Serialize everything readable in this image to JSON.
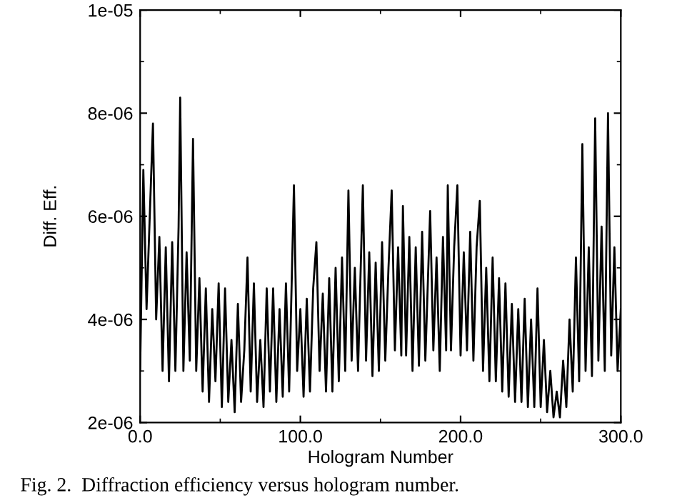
{
  "chart_data": {
    "type": "line",
    "xlabel": "Hologram Number",
    "ylabel": "Diff. Eff.",
    "annotations": [
      "Fig. 2.  Diffraction efficiency versus hologram number."
    ],
    "xlim": [
      0,
      300
    ],
    "ylim": [
      2e-06,
      1e-05
    ],
    "xticks": [
      {
        "value": 0,
        "label": "0.0"
      },
      {
        "value": 100,
        "label": "100.0"
      },
      {
        "value": 200,
        "label": "200.0"
      },
      {
        "value": 300,
        "label": "300.0"
      }
    ],
    "yticks": [
      {
        "value": 2e-06,
        "label": "2e-06"
      },
      {
        "value": 4e-06,
        "label": "4e-06"
      },
      {
        "value": 6e-06,
        "label": "6e-06"
      },
      {
        "value": 8e-06,
        "label": "8e-06"
      },
      {
        "value": 1e-05,
        "label": "1e-05"
      }
    ],
    "grid": false,
    "marker": "none",
    "line_style": "solid",
    "series": [
      {
        "color": "#000000",
        "x": [
          0,
          2,
          4,
          6,
          8,
          10,
          12,
          14,
          16,
          18,
          20,
          22,
          24,
          25,
          27,
          29,
          31,
          33,
          35,
          37,
          39,
          41,
          43,
          45,
          47,
          49,
          51,
          53,
          55,
          57,
          59,
          61,
          63,
          65,
          67,
          69,
          71,
          73,
          75,
          77,
          79,
          81,
          83,
          85,
          87,
          89,
          91,
          93,
          96,
          98,
          100,
          102,
          104,
          106,
          108,
          110,
          112,
          114,
          116,
          118,
          120,
          122,
          124,
          126,
          128,
          130,
          132,
          134,
          136,
          139,
          141,
          143,
          145,
          147,
          149,
          151,
          153,
          155,
          157,
          159,
          161,
          163,
          164,
          166,
          168,
          170,
          172,
          174,
          176,
          178,
          181,
          183,
          185,
          187,
          189,
          191,
          192,
          194,
          196,
          198,
          200,
          202,
          204,
          206,
          208,
          210,
          212,
          214,
          216,
          218,
          220,
          222,
          224,
          226,
          228,
          230,
          232,
          234,
          236,
          238,
          240,
          242,
          244,
          246,
          248,
          250,
          252,
          254,
          256,
          258,
          260,
          262,
          264,
          266,
          268,
          270,
          272,
          274,
          276,
          278,
          280,
          282,
          284,
          286,
          288,
          290,
          292,
          294,
          296,
          298,
          300
        ],
        "values": [
          3e-06,
          6.9e-06,
          4.2e-06,
          6e-06,
          7.8e-06,
          4e-06,
          5.6e-06,
          3e-06,
          5.4e-06,
          2.8e-06,
          5.5e-06,
          3e-06,
          5.8e-06,
          8.3e-06,
          3e-06,
          5.3e-06,
          3.2e-06,
          7.5e-06,
          3e-06,
          4.8e-06,
          2.6e-06,
          4.6e-06,
          2.4e-06,
          4.2e-06,
          2.8e-06,
          4.7e-06,
          2.3e-06,
          4.6e-06,
          2.4e-06,
          3.6e-06,
          2.2e-06,
          4.3e-06,
          2.4e-06,
          3.4e-06,
          5.2e-06,
          2.6e-06,
          4.7e-06,
          2.4e-06,
          3.6e-06,
          2.3e-06,
          4.6e-06,
          2.6e-06,
          4.6e-06,
          2.4e-06,
          4.2e-06,
          2.5e-06,
          4.7e-06,
          2.6e-06,
          6.6e-06,
          3e-06,
          4.2e-06,
          2.5e-06,
          4.4e-06,
          2.6e-06,
          4.6e-06,
          5.5e-06,
          3e-06,
          4.5e-06,
          2.6e-06,
          4.8e-06,
          2.6e-06,
          5e-06,
          2.8e-06,
          5.2e-06,
          3e-06,
          6.5e-06,
          3.2e-06,
          5e-06,
          3e-06,
          6.6e-06,
          3.2e-06,
          5.3e-06,
          2.9e-06,
          5.1e-06,
          3e-06,
          5.5e-06,
          3.2e-06,
          5e-06,
          6.5e-06,
          3.4e-06,
          5.4e-06,
          3.3e-06,
          6.2e-06,
          3.3e-06,
          5.6e-06,
          3e-06,
          5.4e-06,
          3.1e-06,
          5.7e-06,
          3.2e-06,
          6.1e-06,
          3.4e-06,
          5.2e-06,
          3e-06,
          5.6e-06,
          3.4e-06,
          6.6e-06,
          3.4e-06,
          5.4e-06,
          6.6e-06,
          3.3e-06,
          5.3e-06,
          3.4e-06,
          5.7e-06,
          3.2e-06,
          5.4e-06,
          6.3e-06,
          3e-06,
          5e-06,
          2.8e-06,
          5.2e-06,
          2.8e-06,
          4.8e-06,
          2.6e-06,
          4.7e-06,
          2.5e-06,
          4.3e-06,
          2.4e-06,
          4.2e-06,
          2.4e-06,
          4.4e-06,
          2.3e-06,
          4e-06,
          2.3e-06,
          4.6e-06,
          2.3e-06,
          3.6e-06,
          2.2e-06,
          3e-06,
          2.1e-06,
          2.6e-06,
          2.1e-06,
          3.2e-06,
          2.3e-06,
          4e-06,
          2.6e-06,
          5.2e-06,
          2.8e-06,
          7.4e-06,
          3e-06,
          5.4e-06,
          2.9e-06,
          7.9e-06,
          3.2e-06,
          5.8e-06,
          3e-06,
          8e-06,
          3.3e-06,
          5.4e-06,
          3e-06,
          4.2e-06
        ]
      }
    ]
  }
}
